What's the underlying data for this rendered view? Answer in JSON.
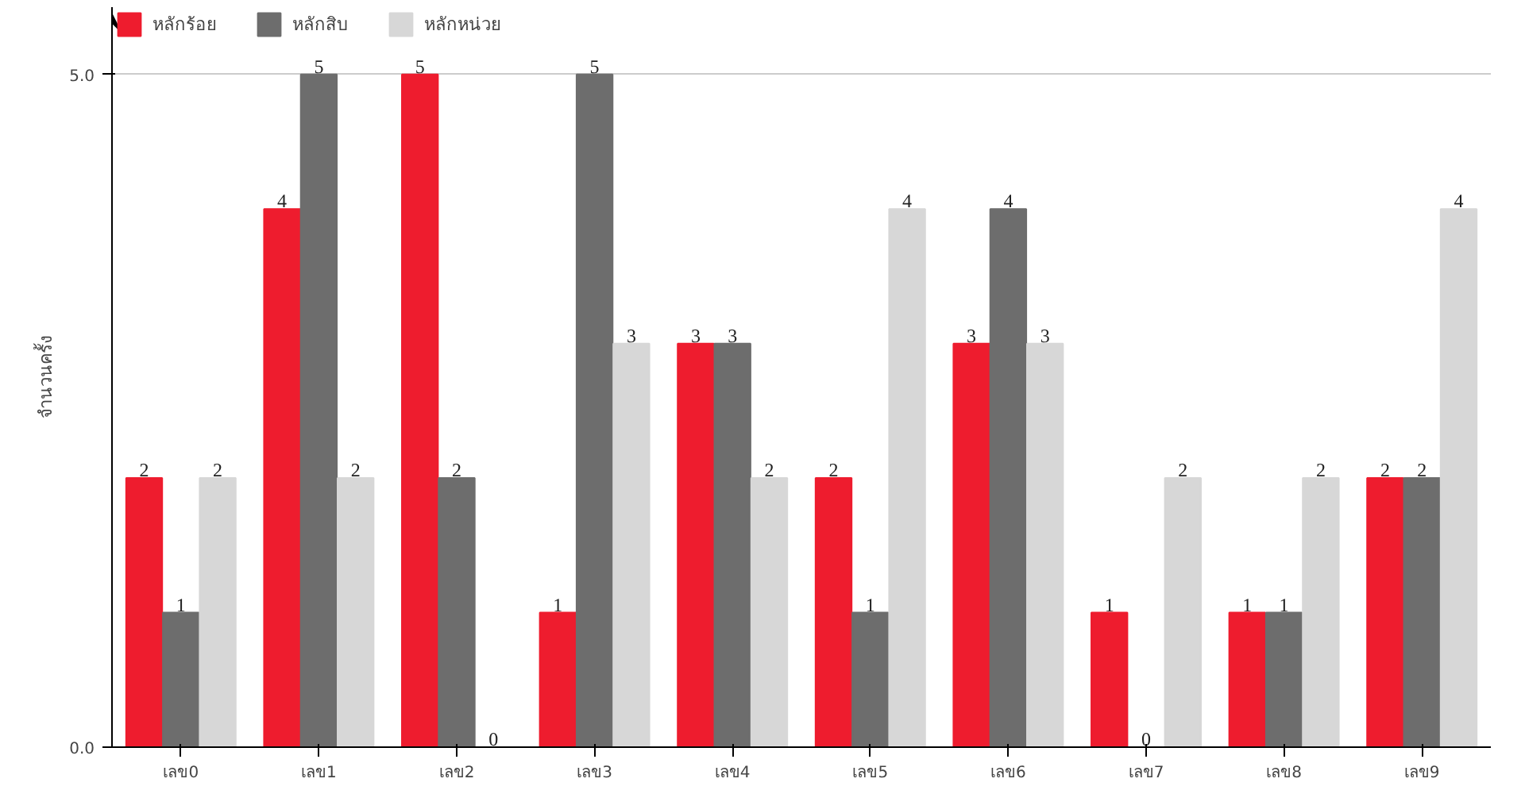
{
  "chart_data": {
    "type": "bar",
    "ylabel": "จำนวนครั้ง",
    "categories": [
      "เลข0",
      "เลข1",
      "เลข2",
      "เลข3",
      "เลข4",
      "เลข5",
      "เลข6",
      "เลข7",
      "เลข8",
      "เลข9"
    ],
    "series": [
      {
        "name": "หลักร้อย",
        "color": "#ee1c2e",
        "values": [
          2,
          4,
          5,
          1,
          3,
          2,
          3,
          1,
          1,
          2
        ]
      },
      {
        "name": "หลักสิบ",
        "color": "#6d6d6d",
        "values": [
          1,
          5,
          2,
          5,
          3,
          1,
          4,
          0,
          1,
          2
        ]
      },
      {
        "name": "หลักหน่วย",
        "color": "#d7d7d7",
        "values": [
          2,
          2,
          0,
          3,
          2,
          4,
          3,
          2,
          2,
          4
        ]
      }
    ],
    "ylim": [
      0,
      5.5
    ],
    "yticks": [
      {
        "value": 0,
        "label": "0.0"
      },
      {
        "value": 5,
        "label": "5.0"
      }
    ],
    "grid": "y",
    "legend": "top left",
    "data_labels": true
  }
}
